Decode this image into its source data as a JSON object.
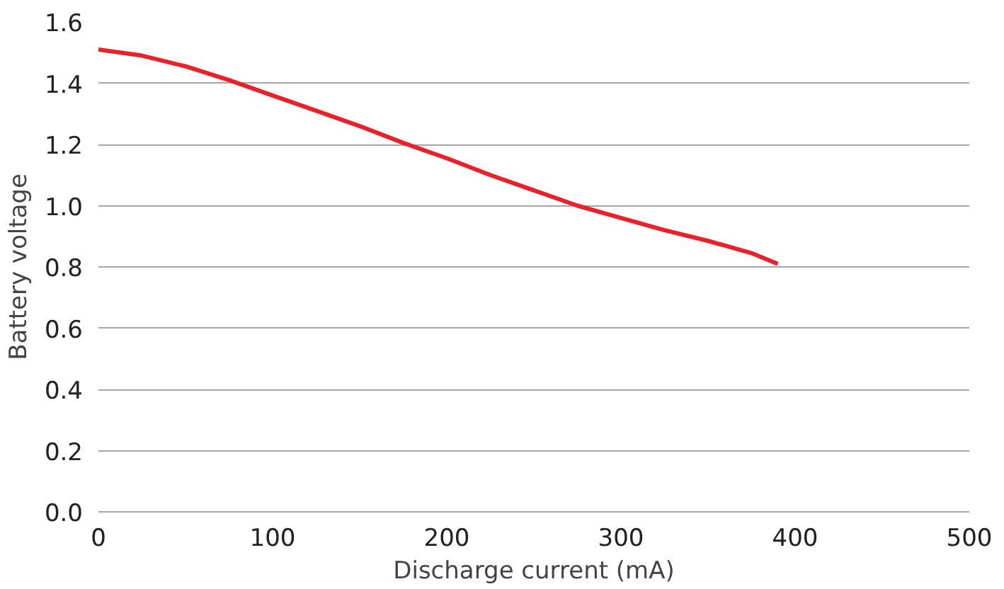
{
  "chart_data": {
    "type": "line",
    "xlabel": "Discharge current (mA)",
    "ylabel": "Battery voltage",
    "x": [
      0,
      25,
      50,
      75,
      100,
      125,
      150,
      175,
      200,
      225,
      250,
      275,
      300,
      325,
      350,
      375,
      390
    ],
    "series": [
      {
        "color": "#e8212a",
        "values": [
          1.51,
          1.49,
          1.455,
          1.41,
          1.36,
          1.31,
          1.26,
          1.205,
          1.155,
          1.1,
          1.05,
          1.0,
          0.96,
          0.92,
          0.885,
          0.845,
          0.81
        ]
      }
    ],
    "xlim": [
      0,
      500
    ],
    "xticks": [
      0,
      100,
      200,
      300,
      400,
      500
    ],
    "ylim": [
      0,
      1.6
    ],
    "yticks": [
      {
        "value": 0,
        "label": "0.0"
      },
      {
        "value": 0.2,
        "label": "0.2"
      },
      {
        "value": 0.4,
        "label": "0.4"
      },
      {
        "value": 0.6,
        "label": "0.6"
      },
      {
        "value": 0.8,
        "label": "0.8"
      },
      {
        "value": 1.0,
        "label": "1.0"
      },
      {
        "value": 1.2,
        "label": "1.2"
      },
      {
        "value": 1.4,
        "label": "1.4"
      },
      {
        "value": 1.6,
        "label": "1.6"
      }
    ],
    "grid": "y",
    "marker": "none",
    "line_style": "solid"
  }
}
